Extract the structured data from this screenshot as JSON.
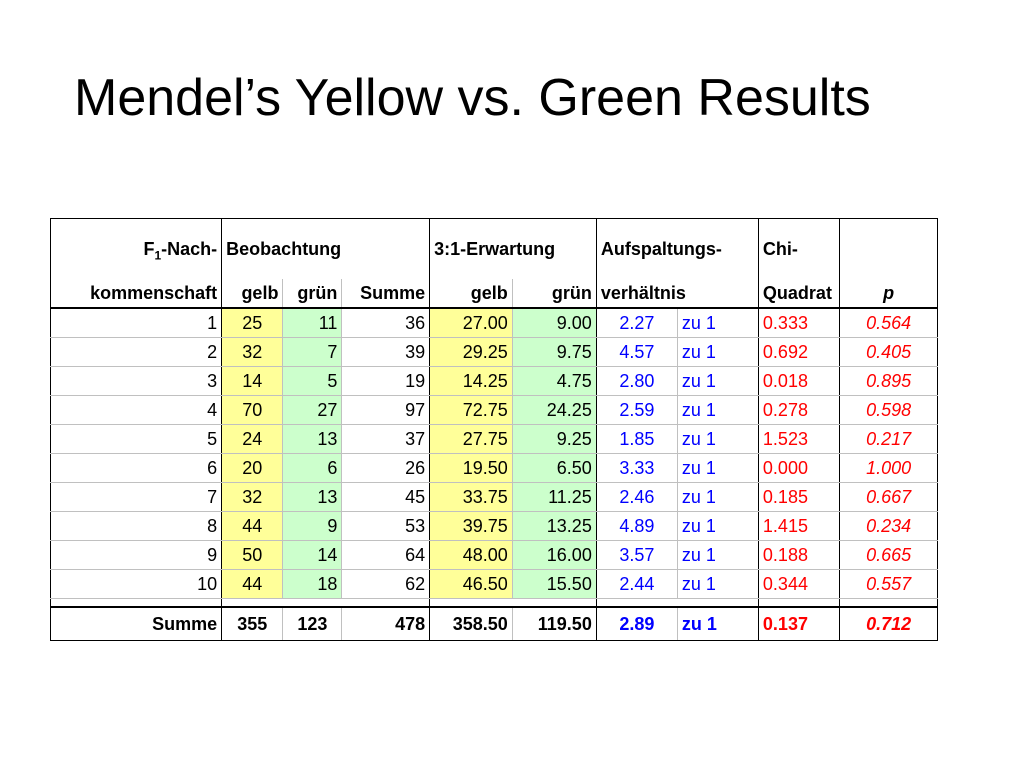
{
  "title": "Mendel’s Yellow vs. Green Results",
  "headers": {
    "row1": {
      "f1_prefix": "F",
      "f1_sub": "1",
      "f1_suffix": "-Nach-",
      "observation": "Beobachtung",
      "expectation": "3:1-Erwartung",
      "ratio": "Aufspaltungs-",
      "chi": "Chi-"
    },
    "row2": {
      "offspring": "kommenschaft",
      "obs_yellow": "gelb",
      "obs_green": "grün",
      "obs_sum": "Summe",
      "exp_yellow": "gelb",
      "exp_green": "grün",
      "ratio": "verhältnis",
      "chi": "Quadrat",
      "p": "p"
    }
  },
  "rows": [
    {
      "n": "1",
      "gelb": "25",
      "gruen": "11",
      "summe": "36",
      "e_gelb": "27.00",
      "e_gruen": "9.00",
      "ratio": "2.27",
      "zu": "zu 1",
      "chi": "0.333",
      "p": "0.564"
    },
    {
      "n": "2",
      "gelb": "32",
      "gruen": "7",
      "summe": "39",
      "e_gelb": "29.25",
      "e_gruen": "9.75",
      "ratio": "4.57",
      "zu": "zu 1",
      "chi": "0.692",
      "p": "0.405"
    },
    {
      "n": "3",
      "gelb": "14",
      "gruen": "5",
      "summe": "19",
      "e_gelb": "14.25",
      "e_gruen": "4.75",
      "ratio": "2.80",
      "zu": "zu 1",
      "chi": "0.018",
      "p": "0.895"
    },
    {
      "n": "4",
      "gelb": "70",
      "gruen": "27",
      "summe": "97",
      "e_gelb": "72.75",
      "e_gruen": "24.25",
      "ratio": "2.59",
      "zu": "zu 1",
      "chi": "0.278",
      "p": "0.598"
    },
    {
      "n": "5",
      "gelb": "24",
      "gruen": "13",
      "summe": "37",
      "e_gelb": "27.75",
      "e_gruen": "9.25",
      "ratio": "1.85",
      "zu": "zu 1",
      "chi": "1.523",
      "p": "0.217"
    },
    {
      "n": "6",
      "gelb": "20",
      "gruen": "6",
      "summe": "26",
      "e_gelb": "19.50",
      "e_gruen": "6.50",
      "ratio": "3.33",
      "zu": "zu 1",
      "chi": "0.000",
      "p": "1.000"
    },
    {
      "n": "7",
      "gelb": "32",
      "gruen": "13",
      "summe": "45",
      "e_gelb": "33.75",
      "e_gruen": "11.25",
      "ratio": "2.46",
      "zu": "zu 1",
      "chi": "0.185",
      "p": "0.667"
    },
    {
      "n": "8",
      "gelb": "44",
      "gruen": "9",
      "summe": "53",
      "e_gelb": "39.75",
      "e_gruen": "13.25",
      "ratio": "4.89",
      "zu": "zu 1",
      "chi": "1.415",
      "p": "0.234"
    },
    {
      "n": "9",
      "gelb": "50",
      "gruen": "14",
      "summe": "64",
      "e_gelb": "48.00",
      "e_gruen": "16.00",
      "ratio": "3.57",
      "zu": "zu 1",
      "chi": "0.188",
      "p": "0.665"
    },
    {
      "n": "10",
      "gelb": "44",
      "gruen": "18",
      "summe": "62",
      "e_gelb": "46.50",
      "e_gruen": "15.50",
      "ratio": "2.44",
      "zu": "zu 1",
      "chi": "0.344",
      "p": "0.557"
    }
  ],
  "total": {
    "label": "Summe",
    "gelb": "355",
    "gruen": "123",
    "summe": "478",
    "e_gelb": "358.50",
    "e_gruen": "119.50",
    "ratio": "2.89",
    "zu": "zu 1",
    "chi": "0.137",
    "p": "0.712"
  },
  "colors": {
    "yellow_fill": "#ffff99",
    "green_fill": "#ccffcc",
    "ratio_text": "#0000ff",
    "chi_text": "#ff0000"
  }
}
